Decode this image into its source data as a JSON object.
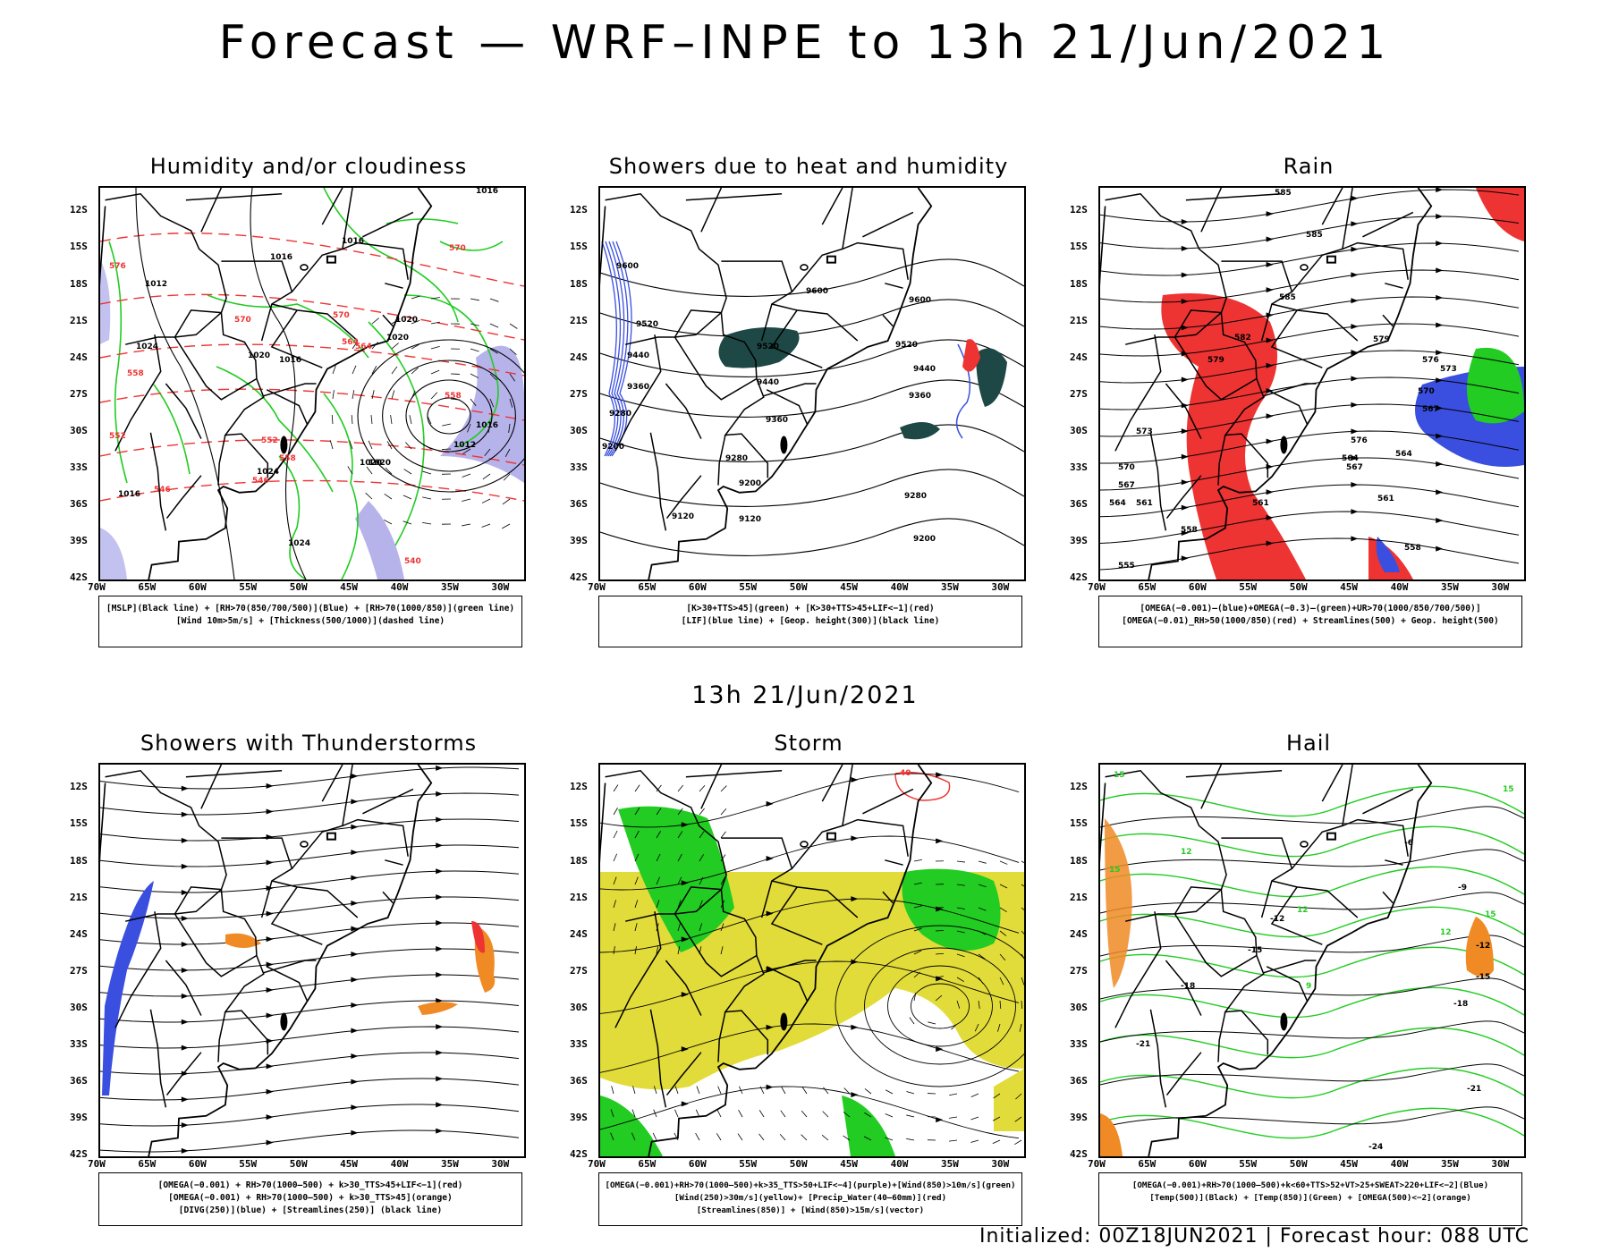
{
  "header": {
    "title": "Forecast — WRF–INPE to 13h 21/Jun/2021",
    "mid_title": "13h 21/Jun/2021",
    "footer": "Initialized: 00Z18JUN2021 | Forecast hour: 088 UTC"
  },
  "axes": {
    "lat_labels": [
      "12S",
      "15S",
      "18S",
      "21S",
      "24S",
      "27S",
      "30S",
      "33S",
      "36S",
      "39S",
      "42S"
    ],
    "lon_labels": [
      "70W",
      "65W",
      "60W",
      "55W",
      "50W",
      "45W",
      "40W",
      "35W",
      "30W"
    ]
  },
  "panels": [
    {
      "title": "Humidity and/or cloudiness",
      "legend": [
        "[MSLP](Black line) + [RH>70(850/700/500)](Blue) + [RH>70(1000/850)](green line)",
        "[Wind 10m>5m/s] + [Thickness(500/1000)](dashed line)"
      ],
      "labels_black": [
        "1016",
        "1016",
        "1016",
        "1012",
        "1020",
        "1024",
        "1016",
        "1020",
        "1020",
        "1016",
        "1012",
        "1016",
        "1020",
        "1024",
        "1024",
        "1020"
      ],
      "labels_red": [
        "570",
        "576",
        "570",
        "564",
        "558",
        "552",
        "546",
        "552",
        "558",
        "546",
        "540",
        "570",
        "564",
        "558"
      ]
    },
    {
      "title": "Showers due to heat and humidity",
      "legend": [
        "[K>30+TTS>45](green) + [K>30+TTS>45+LIF<−1](red)",
        "[LIF](blue line) + [Geop. height(300)](black line)"
      ],
      "labels_black": [
        "9600",
        "9600",
        "9520",
        "9440",
        "9360",
        "9280",
        "9200",
        "9120",
        "9520",
        "9440",
        "9360",
        "9280",
        "9200",
        "9120",
        "9600",
        "9520",
        "9440",
        "9360",
        "9280",
        "9200"
      ]
    },
    {
      "title": "Rain",
      "legend": [
        "[OMEGA(−0.001)–(blue)+OMEGA(−0.3)–(green)+UR>70(1000/850/700/500)]",
        "[OMEGA(−0.01)_RH>50(1000/850)(red) + Streamlines(500) + Geop. height(500)"
      ],
      "labels_black": [
        "585",
        "585",
        "585",
        "582",
        "579",
        "576",
        "573",
        "570",
        "567",
        "564",
        "561",
        "558",
        "555",
        "567",
        "564",
        "561",
        "579",
        "576",
        "573",
        "570",
        "567",
        "564",
        "561",
        "558"
      ]
    },
    {
      "title": "Showers with Thunderstorms",
      "legend": [
        "[OMEGA(−0.001) + RH>70(1000–500) + k>30_TTS>45+LIF<−1](red)",
        "[OMEGA(−0.001) + RH>70(1000–500) + k>30_TTS>45](orange)",
        "[DIVG(250)](blue) + [Streamlines(250)] (black line)"
      ]
    },
    {
      "title": "Storm",
      "legend": [
        "[OMEGA(−0.001)+RH>70(1000–500)+k>35_TTS>50+LIF<−4](purple)+[Wind(850)>10m/s](green)",
        "[Wind(250)>30m/s](yellow)+ [Precip_Water(40–60mm)](red)",
        "[Streamlines(850)] + [Wind(850)>15m/s](vector)"
      ],
      "labels_red": [
        "40"
      ]
    },
    {
      "title": "Hail",
      "legend": [
        "[OMEGA(−0.001)+RH>70(1000–500)+k<60+TTS>52+VT>25+SWEAT>220+LIF<−2](Blue)",
        "[Temp(500)](Black) + [Temp(850)](Green) + [OMEGA(500)<−2](orange)"
      ],
      "labels_black": [
        "-6",
        "-9",
        "-12",
        "-15",
        "-18",
        "-21",
        "-24",
        "-12",
        "-15",
        "-18",
        "-21"
      ],
      "labels_green": [
        "15",
        "15",
        "12",
        "15",
        "12",
        "9",
        "12",
        "15"
      ]
    }
  ],
  "colors": {
    "green": "#22cc22",
    "blue": "#3a4fe0",
    "red": "#ee3333",
    "orange": "#f08a24",
    "yellow": "#e2dc3a",
    "dark_teal": "#1e4846",
    "lavender": "#a9a6e8"
  }
}
